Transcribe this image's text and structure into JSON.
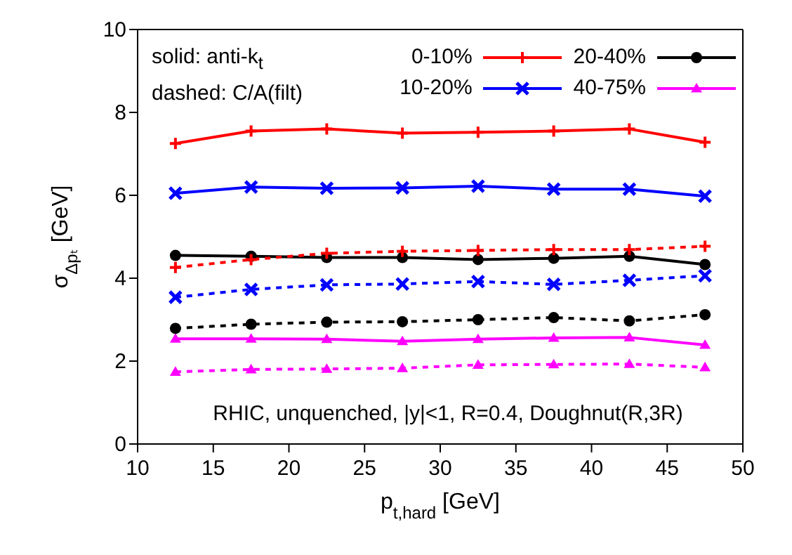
{
  "chart_data": {
    "type": "line",
    "xlabel": "p$_{t,hard}$ [GeV]",
    "ylabel": "σ$_{Δpₜ}$ [GeV]",
    "x": [
      12.5,
      17.5,
      22.5,
      27.5,
      32.5,
      37.5,
      42.5,
      47.5
    ],
    "xlim": [
      10,
      50
    ],
    "xticks": [
      10,
      15,
      20,
      25,
      30,
      35,
      40,
      45,
      50
    ],
    "ylim": [
      0,
      10
    ],
    "yticks": [
      0,
      2,
      4,
      6,
      8,
      10
    ],
    "legend": "top right",
    "annotations": [
      "solid: anti-k$_{t}$",
      "dashed: C/A(filt)",
      "RHIC, unquenched, |y|<1, R=0.4, Doughnut(R,3R)"
    ],
    "series": [
      {
        "name": "0-10%",
        "color": "#ff0000",
        "marker": "plus",
        "line_style": "solid",
        "values": [
          7.25,
          7.55,
          7.6,
          7.5,
          7.52,
          7.55,
          7.6,
          7.28
        ]
      },
      {
        "name": "10-20%",
        "color": "#0000ff",
        "marker": "cross",
        "line_style": "solid",
        "values": [
          6.05,
          6.2,
          6.17,
          6.18,
          6.22,
          6.15,
          6.15,
          5.98
        ]
      },
      {
        "name": "20-40%",
        "color": "#000000",
        "marker": "circle",
        "line_style": "solid",
        "values": [
          4.55,
          4.53,
          4.5,
          4.5,
          4.45,
          4.48,
          4.53,
          4.33
        ]
      },
      {
        "name": "40-75%",
        "color": "#ff00ff",
        "marker": "triangle",
        "line_style": "solid",
        "values": [
          2.54,
          2.54,
          2.53,
          2.48,
          2.53,
          2.56,
          2.57,
          2.39
        ]
      },
      {
        "color": "#ff0000",
        "marker": "plus",
        "line_style": "dashed",
        "values": [
          4.26,
          4.45,
          4.6,
          4.65,
          4.67,
          4.69,
          4.69,
          4.77
        ]
      },
      {
        "color": "#0000ff",
        "marker": "cross",
        "line_style": "dashed",
        "values": [
          3.54,
          3.73,
          3.84,
          3.86,
          3.92,
          3.85,
          3.95,
          4.06
        ]
      },
      {
        "color": "#000000",
        "marker": "circle",
        "line_style": "dashed",
        "values": [
          2.79,
          2.89,
          2.94,
          2.95,
          3.0,
          3.05,
          2.97,
          3.12
        ]
      },
      {
        "color": "#ff00ff",
        "marker": "triangle",
        "line_style": "dashed",
        "values": [
          1.74,
          1.8,
          1.81,
          1.83,
          1.91,
          1.92,
          1.93,
          1.85
        ]
      }
    ]
  }
}
